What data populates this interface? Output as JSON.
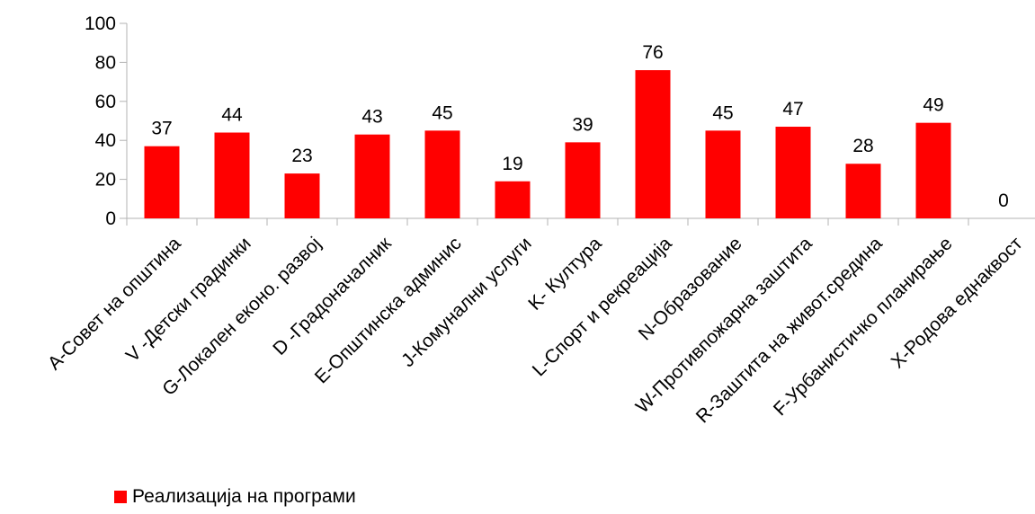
{
  "chart_data": {
    "type": "bar",
    "categories": [
      "A-Совет на општина",
      "V -Детски градинки",
      "G-Локален еконо. развој",
      "D -Градоначалник",
      "E-Општинска админис",
      "J-Комунални услуги",
      "K- Култура",
      "L-Спорт и рекреација",
      "N-Образование",
      "W-Противпожарна заштита",
      "R-Заштита на живот.средина",
      "F-Урбанистичко планирање",
      "X-Родова еднаквост"
    ],
    "series": [
      {
        "name": "Реализација на програми",
        "color": "#ff0000",
        "values": [
          37,
          44,
          23,
          43,
          45,
          19,
          39,
          76,
          45,
          47,
          28,
          49,
          0
        ]
      }
    ],
    "ylim": [
      0,
      100
    ],
    "yticks": [
      0,
      20,
      40,
      60,
      80,
      100
    ],
    "grid": false,
    "legend_position": "bottom-left",
    "data_labels": true
  }
}
